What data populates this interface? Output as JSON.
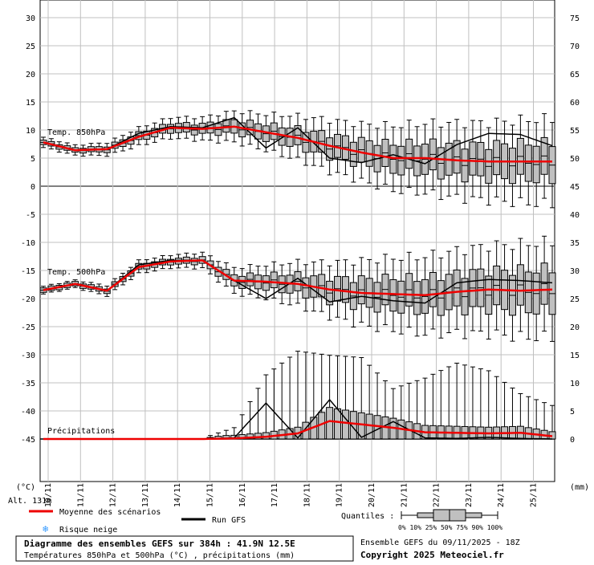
{
  "chart_data": {
    "type": "line",
    "title": "Diagramme des ensembles GEFS sur 384h : 41.9N 12.5E",
    "subtitle": "Températures 850hPa et 500hPa (°C) , précipitations (mm)",
    "run_info": "Ensemble GEFS du 09/11/2025 - 18Z",
    "copyright": "Copyright 2025 Meteociel.fr",
    "altitude": "Alt. 131m",
    "left_unit": "(°C)",
    "right_unit": "(mm)",
    "left_ticks": [
      "30",
      "25",
      "20",
      "15",
      "10",
      "5",
      "0",
      "-5",
      "-10",
      "-15",
      "-20",
      "-25",
      "-30",
      "-35",
      "-40",
      "-45"
    ],
    "right_ticks": [
      "75",
      "70",
      "65",
      "60",
      "55",
      "50",
      "45",
      "40",
      "35",
      "30",
      "25",
      "20",
      "15",
      "10",
      "5",
      "0"
    ],
    "x_labels": [
      "10/11",
      "11/11",
      "12/11",
      "13/11",
      "14/11",
      "15/11",
      "16/11",
      "17/11",
      "18/11",
      "19/11",
      "20/11",
      "21/11",
      "22/11",
      "23/11",
      "24/11",
      "25/11"
    ],
    "panel_labels": {
      "t850": "Temp. 850hPa",
      "t500": "Temp. 500hPa",
      "precip": "Précipitations"
    },
    "legend": {
      "mean": "Moyenne des scénarios",
      "run": "Run GFS",
      "snow": "Risque neige",
      "quantiles_title": "Quantiles :",
      "quantiles_labels": "0%  10% 25% 50% 75% 90% 100%"
    },
    "colors": {
      "mean": "#ee0000",
      "run": "#000000",
      "box": "#c0c0c0",
      "grid": "#c0c0c0",
      "snow": "#3399ff"
    },
    "x_hours": [
      0,
      24,
      48,
      72,
      96,
      120,
      144,
      168,
      192,
      216,
      240,
      264,
      288,
      312,
      336,
      360,
      384
    ],
    "series": [
      {
        "name": "t850_mean",
        "values": [
          7.8,
          6.4,
          6.6,
          8.8,
          10.4,
          10.2,
          10.6,
          9.6,
          8.6,
          7.2,
          6.0,
          5.0,
          5.0,
          4.6,
          4.4,
          4.4,
          4.4
        ]
      },
      {
        "name": "t850_run",
        "values": [
          7.8,
          6.4,
          6.6,
          9.4,
          10.6,
          10.4,
          12.2,
          6.8,
          10.4,
          5.0,
          4.2,
          5.6,
          4.0,
          7.4,
          9.4,
          9.2,
          7.2
        ]
      },
      {
        "name": "t850_spread",
        "values": [
          0.8,
          0.8,
          1.0,
          1.4,
          1.6,
          1.8,
          2.4,
          2.8,
          3.4,
          4.0,
          4.4,
          5.0,
          5.4,
          5.8,
          6.0,
          6.4,
          6.6
        ]
      },
      {
        "name": "t500_mean",
        "values": [
          -18.5,
          -17.4,
          -18.6,
          -14.4,
          -13.4,
          -13.2,
          -16.8,
          -17.0,
          -17.4,
          -18.4,
          -19.0,
          -19.2,
          -19.4,
          -18.8,
          -18.4,
          -18.6,
          -18.4
        ]
      },
      {
        "name": "t500_run",
        "values": [
          -18.5,
          -17.4,
          -18.6,
          -14.0,
          -13.2,
          -13.2,
          -16.8,
          -20.0,
          -16.4,
          -20.6,
          -19.6,
          -20.4,
          -20.8,
          -17.2,
          -16.6,
          -16.8,
          -17.2
        ]
      },
      {
        "name": "t500_spread",
        "values": [
          0.6,
          0.6,
          0.8,
          1.0,
          1.0,
          1.2,
          2.0,
          2.6,
          3.4,
          4.2,
          5.0,
          5.6,
          6.0,
          6.4,
          6.8,
          7.2,
          7.4
        ]
      },
      {
        "name": "precip_mean",
        "values": [
          0,
          0,
          0,
          0,
          0,
          0,
          0.1,
          0.4,
          1.0,
          3.2,
          2.6,
          2.0,
          1.2,
          1.1,
          1.0,
          1.1,
          0.5
        ]
      },
      {
        "name": "precip_run",
        "values": [
          0,
          0,
          0,
          0,
          0,
          0,
          0.2,
          6.4,
          0.2,
          7.0,
          0.3,
          3.1,
          0.2,
          0.1,
          0.3,
          0.1,
          0
        ]
      },
      {
        "name": "precip_max",
        "values": [
          0,
          0,
          0,
          0,
          0,
          0.2,
          2.2,
          12.0,
          16.0,
          15.0,
          14.5,
          9.0,
          11.0,
          14.0,
          13.0,
          9.0,
          7.0
        ]
      }
    ]
  }
}
